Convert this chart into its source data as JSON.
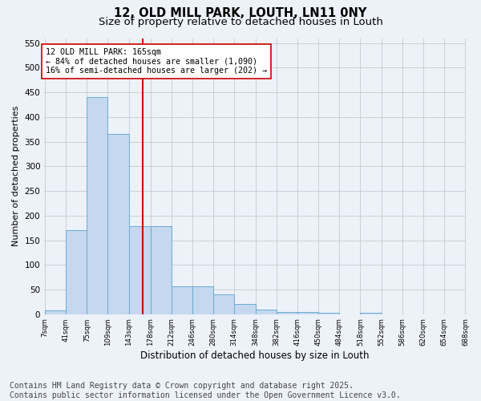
{
  "title_line1": "12, OLD MILL PARK, LOUTH, LN11 0NY",
  "title_line2": "Size of property relative to detached houses in Louth",
  "xlabel": "Distribution of detached houses by size in Louth",
  "ylabel": "Number of detached properties",
  "bar_edges": [
    7,
    41,
    75,
    109,
    143,
    178,
    212,
    246,
    280,
    314,
    348,
    382,
    416,
    450,
    484,
    518,
    552,
    586,
    620,
    654,
    688
  ],
  "bar_heights": [
    8,
    170,
    441,
    366,
    178,
    178,
    57,
    57,
    40,
    20,
    10,
    5,
    5,
    3,
    0,
    3,
    0,
    0,
    0,
    0,
    0
  ],
  "bar_color": "#c5d8ef",
  "bar_edgecolor": "#6aabd2",
  "bar_linewidth": 0.7,
  "grid_color": "#c8c8d0",
  "bg_color": "#edf2f9",
  "property_size": 165,
  "red_line_color": "#cc0000",
  "annotation_text": "12 OLD MILL PARK: 165sqm\n← 84% of detached houses are smaller (1,090)\n16% of semi-detached houses are larger (202) →",
  "annotation_box_color": "#ffffff",
  "annotation_box_edgecolor": "#cc0000",
  "ylim": [
    0,
    560
  ],
  "yticks": [
    0,
    50,
    100,
    150,
    200,
    250,
    300,
    350,
    400,
    450,
    500,
    550
  ],
  "tick_labels": [
    "7sqm",
    "41sqm",
    "75sqm",
    "109sqm",
    "143sqm",
    "178sqm",
    "212sqm",
    "246sqm",
    "280sqm",
    "314sqm",
    "348sqm",
    "382sqm",
    "416sqm",
    "450sqm",
    "484sqm",
    "518sqm",
    "552sqm",
    "586sqm",
    "620sqm",
    "654sqm",
    "688sqm"
  ],
  "footnote": "Contains HM Land Registry data © Crown copyright and database right 2025.\nContains public sector information licensed under the Open Government Licence v3.0.",
  "footnote_fontsize": 7,
  "title_fontsize1": 10.5,
  "title_fontsize2": 9.5,
  "ylabel_fontsize": 8,
  "xlabel_fontsize": 8.5
}
